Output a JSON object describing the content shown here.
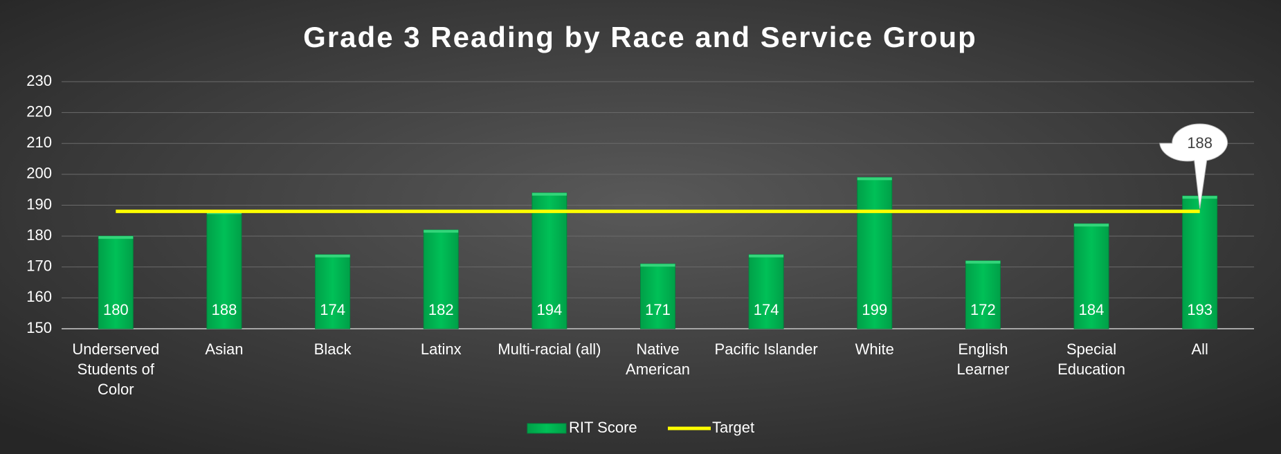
{
  "chart_data": {
    "type": "bar_line",
    "title": "Grade 3 Reading by Race and Service Group",
    "categories": [
      "Underserved Students of Color",
      "Asian",
      "Black",
      "Latinx",
      "Multi-racial (all)",
      "Native American",
      "Pacific Islander",
      "White",
      "English Learner",
      "Special Education",
      "All"
    ],
    "series": [
      {
        "name": "RIT Score",
        "type": "bar",
        "color": "#00b050",
        "values": [
          180,
          188,
          174,
          182,
          194,
          171,
          174,
          199,
          172,
          184,
          193
        ]
      },
      {
        "name": "Target",
        "type": "line",
        "color": "#ffff00",
        "values": [
          188,
          188,
          188,
          188,
          188,
          188,
          188,
          188,
          188,
          188,
          188
        ]
      }
    ],
    "ylim": [
      150,
      230
    ],
    "yticks": [
      150,
      160,
      170,
      180,
      190,
      200,
      210,
      220,
      230
    ],
    "grid": true,
    "legend": "bottom"
  }
}
